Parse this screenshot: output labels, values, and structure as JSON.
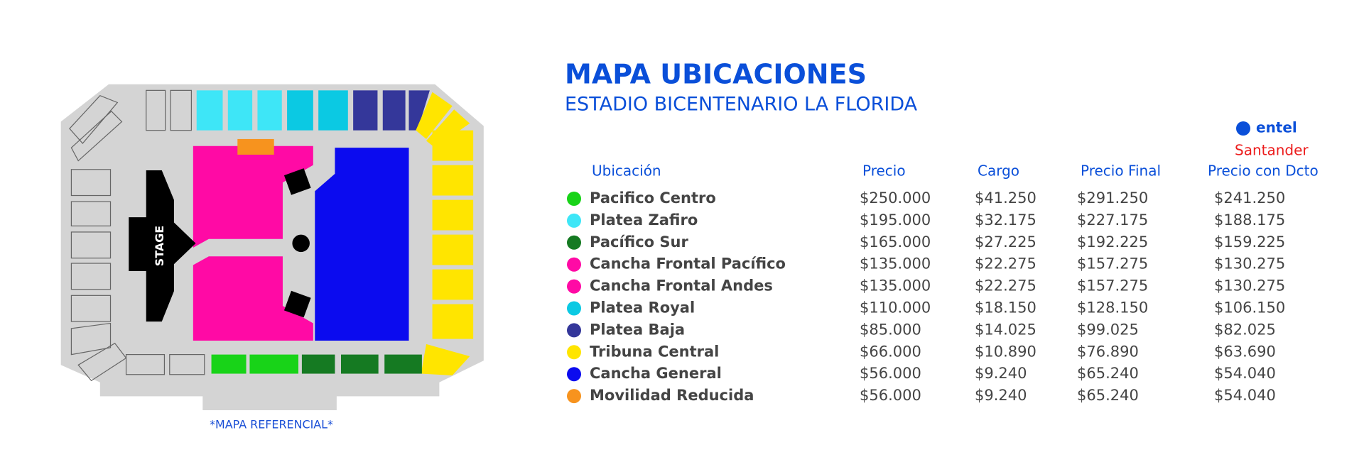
{
  "header": {
    "title": "MAPA UBICACIONES",
    "subtitle": "ESTADIO BICENTENARIO LA FLORIDA"
  },
  "sponsors": {
    "entel": "entel",
    "santander": "Santander"
  },
  "map": {
    "stage": "STAGE",
    "note": "*MAPA REFERENCIAL*"
  },
  "table": {
    "headers": [
      "Ubicación",
      "Precio",
      "Cargo",
      "Precio Final",
      "Precio con Dcto"
    ],
    "rows": [
      {
        "color": "#18d318",
        "cells": [
          "Pacifico Centro",
          "$250.000",
          "$41.250",
          "$291.250",
          "$241.250"
        ]
      },
      {
        "color": "#3ee6f7",
        "cells": [
          "Platea Zafiro",
          "$195.000",
          "$32.175",
          "$227.175",
          "$188.175"
        ]
      },
      {
        "color": "#157a22",
        "cells": [
          "Pacífico Sur",
          "$165.000",
          "$27.225",
          "$192.225",
          "$159.225"
        ]
      },
      {
        "color": "#ff0aa5",
        "cells": [
          "Cancha Frontal Pacífico",
          "$135.000",
          "$22.275",
          "$157.275",
          "$130.275"
        ]
      },
      {
        "color": "#ff0aa5",
        "cells": [
          "Cancha Frontal Andes",
          "$135.000",
          "$22.275",
          "$157.275",
          "$130.275"
        ]
      },
      {
        "color": "#0bc9e3",
        "cells": [
          "Platea Royal",
          "$110.000",
          "$18.150",
          "$128.150",
          "$106.150"
        ]
      },
      {
        "color": "#34379a",
        "cells": [
          "Platea Baja",
          "$85.000",
          "$14.025",
          "$99.025",
          "$82.025"
        ]
      },
      {
        "color": "#ffe500",
        "cells": [
          "Tribuna Central",
          "$66.000",
          "$10.890",
          "$76.890",
          "$63.690"
        ]
      },
      {
        "color": "#0b0bef",
        "cells": [
          "Cancha General",
          "$56.000",
          "$9.240",
          "$65.240",
          "$54.040"
        ]
      },
      {
        "color": "#f7931e",
        "cells": [
          "Movilidad Reducida",
          "$56.000",
          "$9.240",
          "$65.240",
          "$54.040"
        ]
      }
    ]
  }
}
